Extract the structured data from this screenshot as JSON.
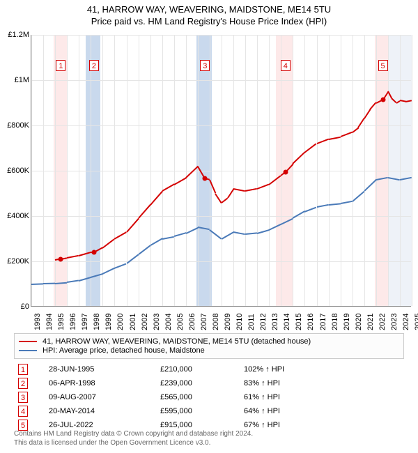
{
  "title": "41, HARROW WAY, WEAVERING, MAIDSTONE, ME14 5TU",
  "subtitle": "Price paid vs. HM Land Registry's House Price Index (HPI)",
  "chart": {
    "type": "line",
    "background_color": "#ffffff",
    "grid_color": "#e5e5e5",
    "axis_color": "#888888",
    "y_axis": {
      "min": 0,
      "max": 1200000,
      "step": 200000,
      "labels": [
        "£0",
        "£200K",
        "£400K",
        "£600K",
        "£800K",
        "£1M",
        "£1.2M"
      ]
    },
    "x_axis": {
      "min": 1993,
      "max": 2025,
      "step": 1,
      "labels": [
        "1993",
        "1994",
        "1995",
        "1996",
        "1997",
        "1998",
        "1999",
        "2000",
        "2001",
        "2002",
        "2003",
        "2004",
        "2005",
        "2006",
        "2007",
        "2008",
        "2009",
        "2010",
        "2011",
        "2012",
        "2013",
        "2014",
        "2015",
        "2016",
        "2017",
        "2018",
        "2019",
        "2020",
        "2021",
        "2022",
        "2023",
        "2024",
        "2025"
      ]
    },
    "bands": [
      {
        "start": 1994.9,
        "end": 1996.0,
        "color": "#fde9e9"
      },
      {
        "start": 1997.6,
        "end": 1998.8,
        "color": "#c9d9ed"
      },
      {
        "start": 2006.9,
        "end": 2008.2,
        "color": "#c9d9ed"
      },
      {
        "start": 2013.6,
        "end": 2015.0,
        "color": "#fde9e9"
      },
      {
        "start": 2021.9,
        "end": 2023.0,
        "color": "#fde9e9"
      },
      {
        "start": 2023.0,
        "end": 2025.0,
        "color": "#eef2f8"
      }
    ],
    "series": [
      {
        "name": "41, HARROW WAY, WEAVERING, MAIDSTONE, ME14 5TU (detached house)",
        "color": "#d40000",
        "line_width": 2,
        "data": [
          [
            1995.0,
            205000
          ],
          [
            1995.49,
            210000
          ],
          [
            1996.0,
            215000
          ],
          [
            1997.0,
            225000
          ],
          [
            1998.0,
            240000
          ],
          [
            1998.27,
            239000
          ],
          [
            1999.0,
            260000
          ],
          [
            2000.0,
            300000
          ],
          [
            2001.0,
            330000
          ],
          [
            2002.0,
            390000
          ],
          [
            2003.0,
            450000
          ],
          [
            2004.0,
            510000
          ],
          [
            2005.0,
            540000
          ],
          [
            2006.0,
            570000
          ],
          [
            2007.0,
            620000
          ],
          [
            2007.61,
            565000
          ],
          [
            2008.0,
            560000
          ],
          [
            2008.5,
            500000
          ],
          [
            2009.0,
            460000
          ],
          [
            2009.5,
            480000
          ],
          [
            2010.0,
            520000
          ],
          [
            2011.0,
            510000
          ],
          [
            2012.0,
            520000
          ],
          [
            2013.0,
            540000
          ],
          [
            2014.0,
            580000
          ],
          [
            2014.38,
            595000
          ],
          [
            2015.0,
            630000
          ],
          [
            2016.0,
            680000
          ],
          [
            2017.0,
            720000
          ],
          [
            2018.0,
            740000
          ],
          [
            2019.0,
            750000
          ],
          [
            2020.0,
            770000
          ],
          [
            2020.5,
            790000
          ],
          [
            2021.0,
            830000
          ],
          [
            2021.5,
            870000
          ],
          [
            2022.0,
            900000
          ],
          [
            2022.57,
            915000
          ],
          [
            2023.0,
            950000
          ],
          [
            2023.3,
            920000
          ],
          [
            2023.7,
            900000
          ],
          [
            2024.0,
            910000
          ],
          [
            2024.5,
            905000
          ],
          [
            2025.0,
            910000
          ]
        ]
      },
      {
        "name": "HPI: Average price, detached house, Maidstone",
        "color": "#4a7ab8",
        "line_width": 1.6,
        "data": [
          [
            1993.0,
            100000
          ],
          [
            1994.0,
            102000
          ],
          [
            1995.0,
            103000
          ],
          [
            1996.0,
            107000
          ],
          [
            1997.0,
            115000
          ],
          [
            1998.0,
            130000
          ],
          [
            1999.0,
            145000
          ],
          [
            2000.0,
            170000
          ],
          [
            2001.0,
            190000
          ],
          [
            2002.0,
            230000
          ],
          [
            2003.0,
            270000
          ],
          [
            2004.0,
            300000
          ],
          [
            2005.0,
            310000
          ],
          [
            2006.0,
            325000
          ],
          [
            2007.0,
            350000
          ],
          [
            2008.0,
            340000
          ],
          [
            2009.0,
            300000
          ],
          [
            2010.0,
            330000
          ],
          [
            2011.0,
            320000
          ],
          [
            2012.0,
            325000
          ],
          [
            2013.0,
            340000
          ],
          [
            2014.0,
            365000
          ],
          [
            2015.0,
            390000
          ],
          [
            2016.0,
            420000
          ],
          [
            2017.0,
            440000
          ],
          [
            2018.0,
            450000
          ],
          [
            2019.0,
            455000
          ],
          [
            2020.0,
            465000
          ],
          [
            2021.0,
            510000
          ],
          [
            2022.0,
            560000
          ],
          [
            2023.0,
            570000
          ],
          [
            2024.0,
            560000
          ],
          [
            2025.0,
            570000
          ]
        ]
      }
    ],
    "markers": [
      {
        "n": 1,
        "year": 1995.49,
        "price": 210000,
        "box_y": 120,
        "color": "#d40000"
      },
      {
        "n": 2,
        "year": 1998.27,
        "price": 239000,
        "box_y": 120,
        "color": "#d40000"
      },
      {
        "n": 3,
        "year": 2007.61,
        "price": 565000,
        "box_y": 120,
        "color": "#d40000"
      },
      {
        "n": 4,
        "year": 2014.38,
        "price": 595000,
        "box_y": 120,
        "color": "#d40000"
      },
      {
        "n": 5,
        "year": 2022.57,
        "price": 915000,
        "box_y": 120,
        "color": "#d40000"
      }
    ],
    "label_fontsize": 11
  },
  "legend": {
    "border_color": "#cccccc",
    "items": [
      {
        "color": "#d40000",
        "label": "41, HARROW WAY, WEAVERING, MAIDSTONE, ME14 5TU (detached house)"
      },
      {
        "color": "#4a7ab8",
        "label": "HPI: Average price, detached house, Maidstone"
      }
    ]
  },
  "table": {
    "box_color": "#d40000",
    "arrow": "↑",
    "hpi_suffix": "HPI",
    "rows": [
      {
        "n": "1",
        "date": "28-JUN-1995",
        "price": "£210,000",
        "pct": "102%"
      },
      {
        "n": "2",
        "date": "06-APR-1998",
        "price": "£239,000",
        "pct": "83%"
      },
      {
        "n": "3",
        "date": "09-AUG-2007",
        "price": "£565,000",
        "pct": "61%"
      },
      {
        "n": "4",
        "date": "20-MAY-2014",
        "price": "£595,000",
        "pct": "64%"
      },
      {
        "n": "5",
        "date": "26-JUL-2022",
        "price": "£915,000",
        "pct": "67%"
      }
    ]
  },
  "footer": {
    "line1": "Contains HM Land Registry data © Crown copyright and database right 2024.",
    "line2": "This data is licensed under the Open Government Licence v3.0."
  }
}
